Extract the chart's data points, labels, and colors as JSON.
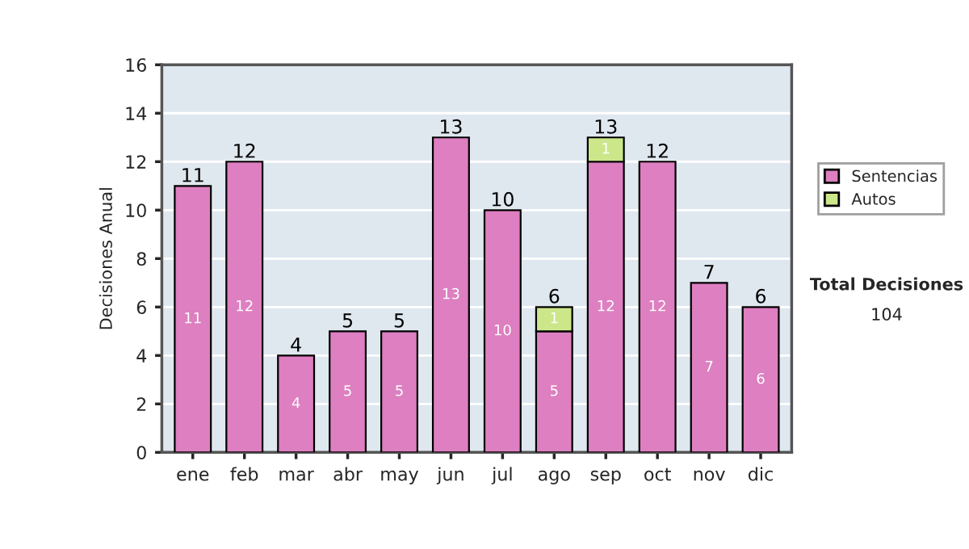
{
  "chart_data": {
    "type": "bar",
    "stacked": true,
    "ylabel": "Decisiones Anual",
    "categories": [
      "ene",
      "feb",
      "mar",
      "abr",
      "may",
      "jun",
      "jul",
      "ago",
      "sep",
      "oct",
      "nov",
      "dic"
    ],
    "series": [
      {
        "name": "Sentencias",
        "color": "#dd7fc0",
        "values": [
          11,
          12,
          4,
          5,
          5,
          13,
          10,
          5,
          12,
          12,
          7,
          6
        ],
        "value_labels": [
          "11",
          "12",
          "4",
          "5",
          "5",
          "13",
          "10",
          "5",
          "12",
          "12",
          "7",
          "6"
        ]
      },
      {
        "name": "Autos",
        "color": "#cce68a",
        "values": [
          0,
          0,
          0,
          0,
          0,
          0,
          0,
          1,
          1,
          0,
          0,
          0
        ],
        "value_labels": [
          null,
          null,
          null,
          null,
          null,
          null,
          null,
          "1",
          "1",
          null,
          null,
          null
        ]
      }
    ],
    "totals": [
      "11",
      "12",
      "4",
      "5",
      "5",
      "13",
      "10",
      "6",
      "13",
      "12",
      "7",
      "6"
    ],
    "ylim": [
      0,
      16
    ],
    "yticks": [
      0,
      2,
      4,
      6,
      8,
      10,
      12,
      14,
      16
    ],
    "grid": "y",
    "legend": "right",
    "annotations": [
      "Total Decisiones",
      "104"
    ]
  }
}
